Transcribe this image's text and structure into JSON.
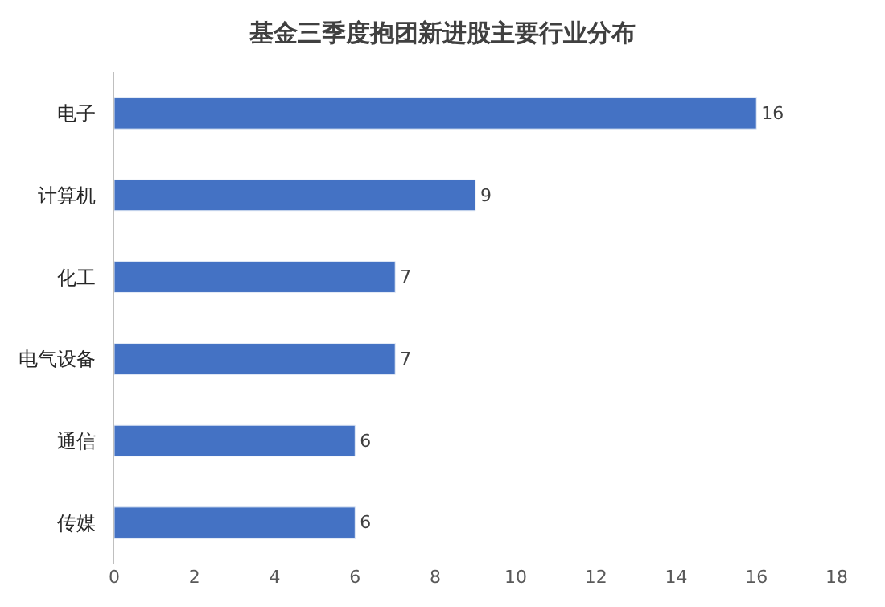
{
  "chart_data": {
    "type": "bar",
    "orientation": "horizontal",
    "title": "基金三季度抱团新进股主要行业分布",
    "categories": [
      "电子",
      "计算机",
      "化工",
      "电气设备",
      "通信",
      "传媒"
    ],
    "values": [
      16,
      9,
      7,
      7,
      6,
      6
    ],
    "color": "#4472c4",
    "xlim": [
      0,
      18
    ],
    "xticks": [
      0,
      2,
      4,
      6,
      8,
      10,
      12,
      14,
      16,
      18
    ],
    "grid": false,
    "data_labels": true
  }
}
